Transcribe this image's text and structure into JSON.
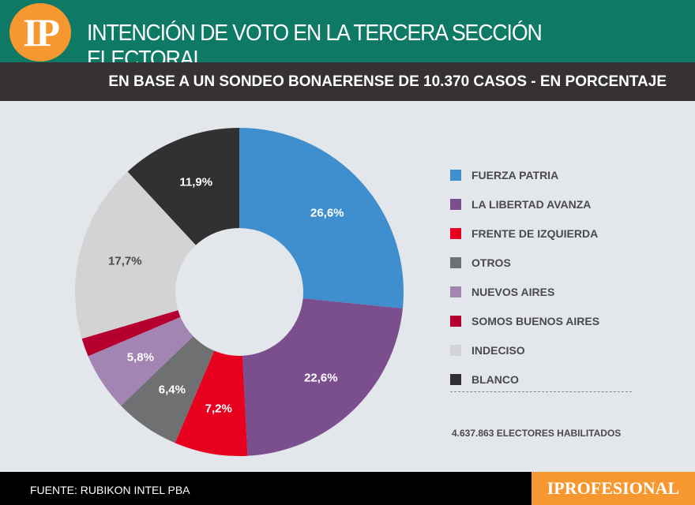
{
  "header": {
    "logo": "IP",
    "title": "INTENCIÓN DE VOTO EN LA TERCERA SECCIÓN ELECTORAL",
    "subtitle": "EN BASE A UN SONDEO BONAERENSE DE 10.370 CASOS - EN PORCENTAJE"
  },
  "chart_data": {
    "type": "pie",
    "donut": true,
    "categories": [
      "FUERZA PATRIA",
      "LA LIBERTAD AVANZA",
      "FRENTE DE IZQUIERDA",
      "OTROS",
      "NUEVOS AIRES",
      "SOMOS BUENOS AIRES",
      "INDECISO",
      "BLANCO"
    ],
    "values": [
      26.6,
      22.6,
      7.2,
      6.4,
      5.8,
      1.8,
      17.7,
      11.9
    ],
    "labels": [
      "26,6%",
      "22,6%",
      "7,2%",
      "6,4%",
      "5,8%",
      "",
      "17,7%",
      "11,9%"
    ],
    "colors": [
      "#3f8fce",
      "#7b4f8e",
      "#e8001f",
      "#6f7072",
      "#a285b3",
      "#b5002f",
      "#d3d3d3",
      "#333031"
    ],
    "label_colors": [
      "#fff",
      "#fff",
      "#fff",
      "#fff",
      "#fff",
      "#fff",
      "#4a4a4d",
      "#fff"
    ],
    "legend_position": "right"
  },
  "electors": "4.637.863 ELECTORES HABILITADOS",
  "footer": {
    "source": "FUENTE: RUBIKON INTEL PBA",
    "brand": "IPROFESIONAL"
  }
}
